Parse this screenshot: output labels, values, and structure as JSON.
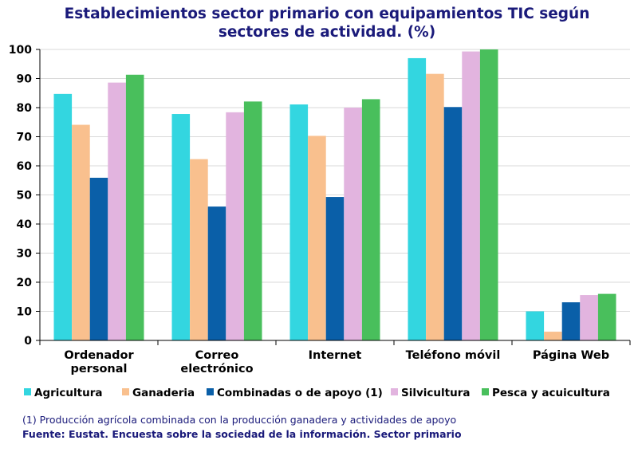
{
  "chart_data": {
    "type": "bar",
    "title": "Establecimientos sector primario con equipamientos TIC según sectores de actividad. (%)",
    "xlabel": "",
    "ylabel": "",
    "ylim": [
      0,
      100
    ],
    "yticks": [
      0,
      10,
      20,
      30,
      40,
      50,
      60,
      70,
      80,
      90,
      100
    ],
    "grid": true,
    "legend_position": "bottom",
    "categories": [
      "Ordenador personal",
      "Correo electrónico",
      "Internet",
      "Teléfono móvil",
      "Página Web"
    ],
    "series": [
      {
        "name": "Agricultura",
        "color": "#33d6e0",
        "values": [
          84.7,
          77.8,
          81.1,
          97.0,
          10.0
        ]
      },
      {
        "name": "Ganaderia",
        "color": "#f9c08e",
        "values": [
          74.1,
          62.3,
          70.3,
          91.6,
          3.0
        ]
      },
      {
        "name": "Combinadas o de apoyo (1)",
        "color": "#0a5fa8",
        "values": [
          55.9,
          46.0,
          49.3,
          80.2,
          13.1
        ]
      },
      {
        "name": "Silvicultura",
        "color": "#e2b4df",
        "values": [
          88.6,
          78.4,
          80.0,
          99.3,
          15.6
        ]
      },
      {
        "name": "Pesca y acuicultura",
        "color": "#49bf5c",
        "values": [
          91.3,
          82.1,
          82.9,
          100.0,
          16.0
        ]
      }
    ]
  },
  "footnote": "(1)  Producción agrícola combinada con la producción ganadera y actividades de apoyo",
  "source": "Fuente: Eustat. Encuesta sobre la sociedad de la información. Sector primario"
}
